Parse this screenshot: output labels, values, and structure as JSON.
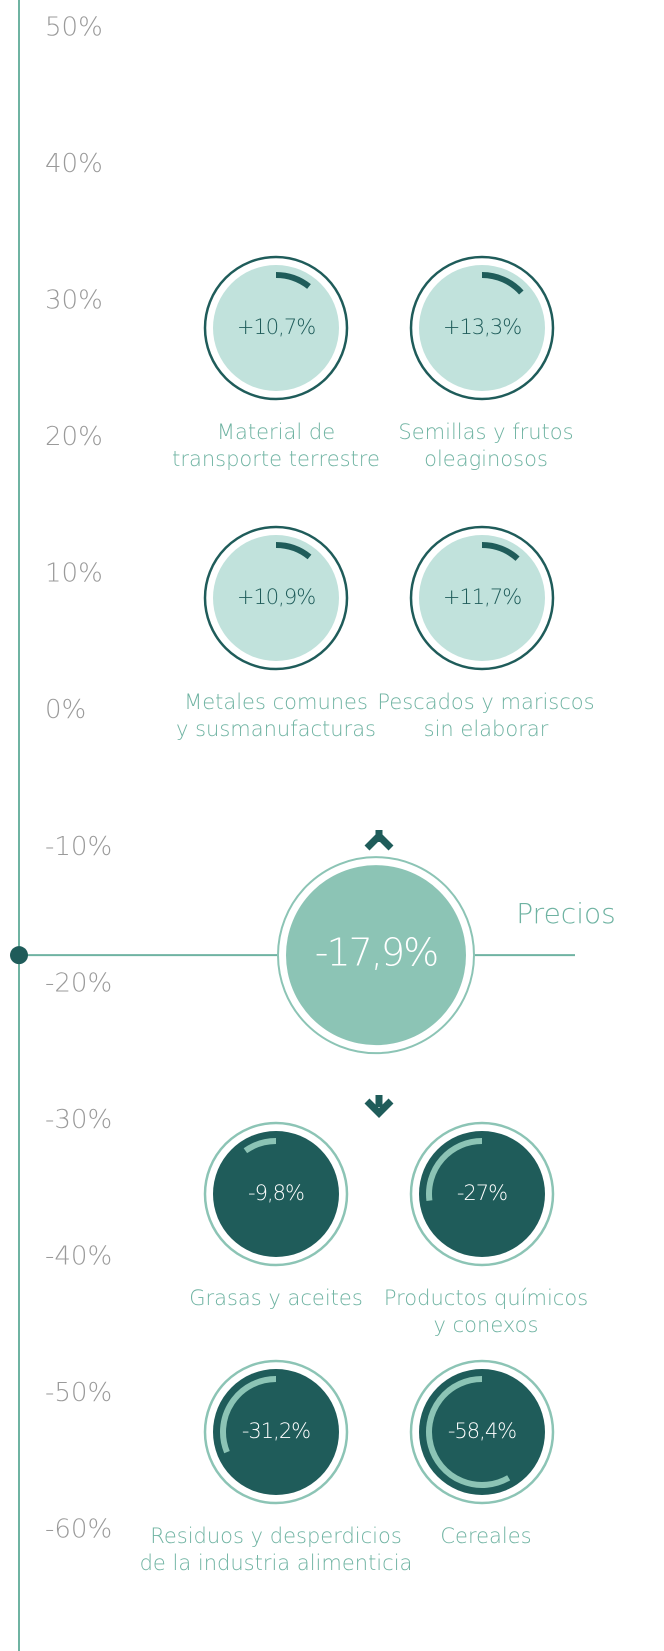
{
  "chart_data": {
    "type": "gauge",
    "ylim": [
      -60,
      50
    ],
    "yticks": [
      {
        "value": 50,
        "label": "50%"
      },
      {
        "value": 40,
        "label": "40%"
      },
      {
        "value": 30,
        "label": "30%"
      },
      {
        "value": 20,
        "label": "20%"
      },
      {
        "value": 10,
        "label": "10%"
      },
      {
        "value": 0,
        "label": "0%"
      },
      {
        "value": -10,
        "label": "-10%"
      },
      {
        "value": -20,
        "label": "-20%"
      },
      {
        "value": -30,
        "label": "-30%"
      },
      {
        "value": -40,
        "label": "-40%"
      },
      {
        "value": -50,
        "label": "-50%"
      },
      {
        "value": -60,
        "label": "-60%"
      }
    ],
    "main": {
      "name": "Precios",
      "value": -17.9,
      "value_label": "-17,9%",
      "color": "#8cc4b5"
    },
    "increases": {
      "fill": "#c1e2dc",
      "arc_color": "#1f5c5a",
      "ring_color": "#1f5c5a",
      "text_color": "#1f5c5a",
      "items": [
        {
          "name": [
            "Material de",
            "transporte terrestre"
          ],
          "value": 10.7,
          "value_label": "+10,7%"
        },
        {
          "name": [
            "Semillas y frutos",
            "oleaginosos"
          ],
          "value": 13.3,
          "value_label": "+13,3%"
        },
        {
          "name": [
            "Metales comunes",
            "y susmanufacturas"
          ],
          "value": 10.9,
          "value_label": "+10,9%"
        },
        {
          "name": [
            "Pescados y mariscos",
            "sin elaborar"
          ],
          "value": 11.7,
          "value_label": "+11,7%"
        }
      ]
    },
    "decreases": {
      "fill": "#1f5c5a",
      "arc_color": "#8cc4b5",
      "ring_color": "#8cc4b5",
      "text_color": "#ffffff",
      "items": [
        {
          "name": [
            "Grasas y aceites"
          ],
          "value": -9.8,
          "value_label": "-9,8%"
        },
        {
          "name": [
            "Productos químicos",
            "y conexos"
          ],
          "value": -27,
          "value_label": "-27%"
        },
        {
          "name": [
            "Residuos y desperdicios",
            "de la industria alimenticia"
          ],
          "value": -31.2,
          "value_label": "-31,2%"
        },
        {
          "name": [
            "Cereales"
          ],
          "value": -58.4,
          "value_label": "-58,4%"
        }
      ]
    }
  }
}
